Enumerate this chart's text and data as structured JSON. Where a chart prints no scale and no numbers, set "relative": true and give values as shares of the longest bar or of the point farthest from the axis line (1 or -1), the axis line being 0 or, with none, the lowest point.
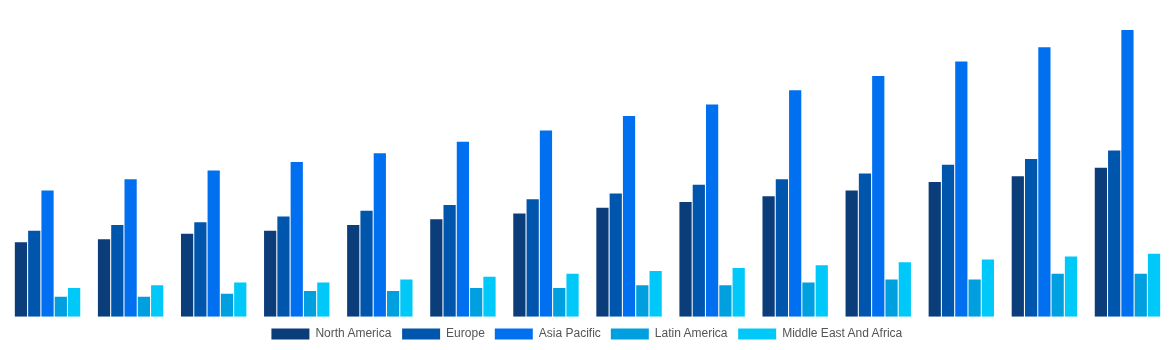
{
  "chart_data": {
    "type": "bar",
    "relative": true,
    "grid": false,
    "legend": "bottom",
    "categories": [
      null,
      null,
      null,
      null,
      null,
      null,
      null,
      null,
      null,
      null,
      null,
      null,
      null,
      null
    ],
    "series": [
      {
        "name": "North America",
        "color": "#0b3d7a",
        "values": [
          0.26,
          0.27,
          0.29,
          0.3,
          0.32,
          0.34,
          0.36,
          0.38,
          0.4,
          0.42,
          0.44,
          0.47,
          0.49,
          0.52
        ]
      },
      {
        "name": "Europe",
        "color": "#0056ad",
        "values": [
          0.3,
          0.32,
          0.33,
          0.35,
          0.37,
          0.39,
          0.41,
          0.43,
          0.46,
          0.48,
          0.5,
          0.53,
          0.55,
          0.58
        ]
      },
      {
        "name": "Asia Pacific",
        "color": "#0070f0",
        "values": [
          0.44,
          0.48,
          0.51,
          0.54,
          0.57,
          0.61,
          0.65,
          0.7,
          0.74,
          0.79,
          0.84,
          0.89,
          0.94,
          1
        ]
      },
      {
        "name": "Latin America",
        "color": "#00a0e0",
        "values": [
          0.07,
          0.07,
          0.08,
          0.09,
          0.09,
          0.1,
          0.1,
          0.11,
          0.11,
          0.12,
          0.13,
          0.13,
          0.15,
          0.15
        ]
      },
      {
        "name": "Middle East And Africa",
        "color": "#00c8f8",
        "values": [
          0.1,
          0.11,
          0.12,
          0.12,
          0.13,
          0.14,
          0.15,
          0.16,
          0.17,
          0.18,
          0.19,
          0.2,
          0.21,
          0.22
        ]
      }
    ]
  }
}
